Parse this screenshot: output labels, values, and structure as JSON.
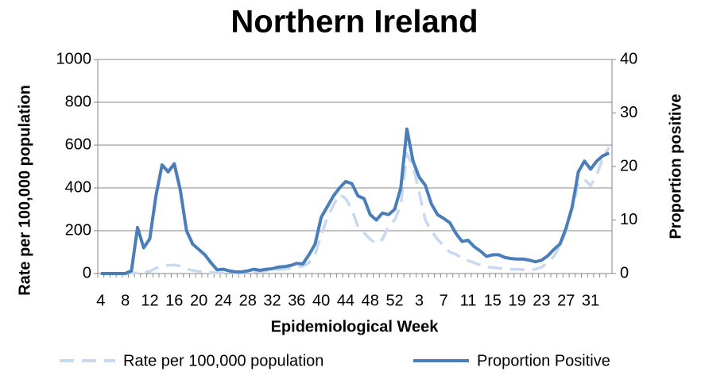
{
  "chart_data": {
    "type": "line",
    "title": "Northern Ireland",
    "x_label": "Epidemiological Week",
    "y_label": "Rate per 100,000 population",
    "y2_label": "Proportion positive",
    "categories": [
      "4",
      null,
      null,
      null,
      "8",
      null,
      null,
      null,
      "12",
      null,
      null,
      null,
      "16",
      null,
      null,
      null,
      "20",
      null,
      null,
      null,
      "24",
      null,
      null,
      null,
      "28",
      null,
      null,
      null,
      "32",
      null,
      null,
      null,
      "36",
      null,
      null,
      null,
      "40",
      null,
      null,
      null,
      "44",
      null,
      null,
      null,
      "48",
      null,
      null,
      null,
      "52",
      null,
      null,
      null,
      "3",
      null,
      null,
      null,
      "7",
      null,
      null,
      null,
      "11",
      null,
      null,
      null,
      "15",
      null,
      null,
      null,
      "19",
      null,
      null,
      null,
      "23",
      null,
      null,
      null,
      "27",
      null,
      null,
      null,
      "31",
      null,
      null,
      null
    ],
    "ylim": [
      0,
      1000
    ],
    "yticks": [
      0,
      200,
      400,
      600,
      800,
      1000
    ],
    "y2lim": [
      0,
      40
    ],
    "y2ticks": [
      0,
      10,
      20,
      30,
      40
    ],
    "grid": true,
    "series": [
      {
        "name": "Rate per 100,000 population",
        "color": "#c6d9f1",
        "dashed": true,
        "axis": "y",
        "values": [
          0,
          0,
          0,
          0,
          0,
          2,
          3,
          5,
          10,
          25,
          35,
          38,
          40,
          35,
          20,
          15,
          10,
          8,
          5,
          3,
          3,
          3,
          4,
          5,
          6,
          8,
          10,
          12,
          15,
          18,
          20,
          25,
          28,
          35,
          50,
          90,
          180,
          260,
          320,
          370,
          350,
          300,
          220,
          190,
          160,
          140,
          160,
          220,
          250,
          320,
          560,
          500,
          380,
          250,
          200,
          160,
          130,
          100,
          90,
          70,
          60,
          50,
          40,
          30,
          28,
          25,
          22,
          20,
          20,
          18,
          18,
          20,
          30,
          50,
          80,
          130,
          200,
          300,
          420,
          440,
          410,
          460,
          540,
          590
        ]
      },
      {
        "name": "Proportion Positive",
        "color": "#4a7ebb",
        "dashed": false,
        "axis": "y2",
        "values": [
          0,
          0,
          0,
          0,
          0,
          0.5,
          8.6,
          4.8,
          6.5,
          14.5,
          20.3,
          19,
          20.5,
          15.5,
          8,
          5.5,
          4.5,
          3.5,
          2,
          0.7,
          0.8,
          0.5,
          0.3,
          0.3,
          0.5,
          0.8,
          0.6,
          0.8,
          0.9,
          1.2,
          1.3,
          1.5,
          1.9,
          1.8,
          3.5,
          5.5,
          10.5,
          12.5,
          14.5,
          16,
          17.2,
          16.8,
          14.5,
          14,
          11,
          10,
          11.3,
          11,
          12,
          16,
          27,
          21,
          18,
          16.5,
          13,
          11,
          10.3,
          9.5,
          7.5,
          6,
          6.2,
          5,
          4.2,
          3.2,
          3.5,
          3.5,
          3,
          2.8,
          2.7,
          2.7,
          2.5,
          2.2,
          2.5,
          3.3,
          4.5,
          5.5,
          8.5,
          12.5,
          19,
          21,
          19.5,
          21,
          22,
          22.5
        ]
      }
    ]
  }
}
